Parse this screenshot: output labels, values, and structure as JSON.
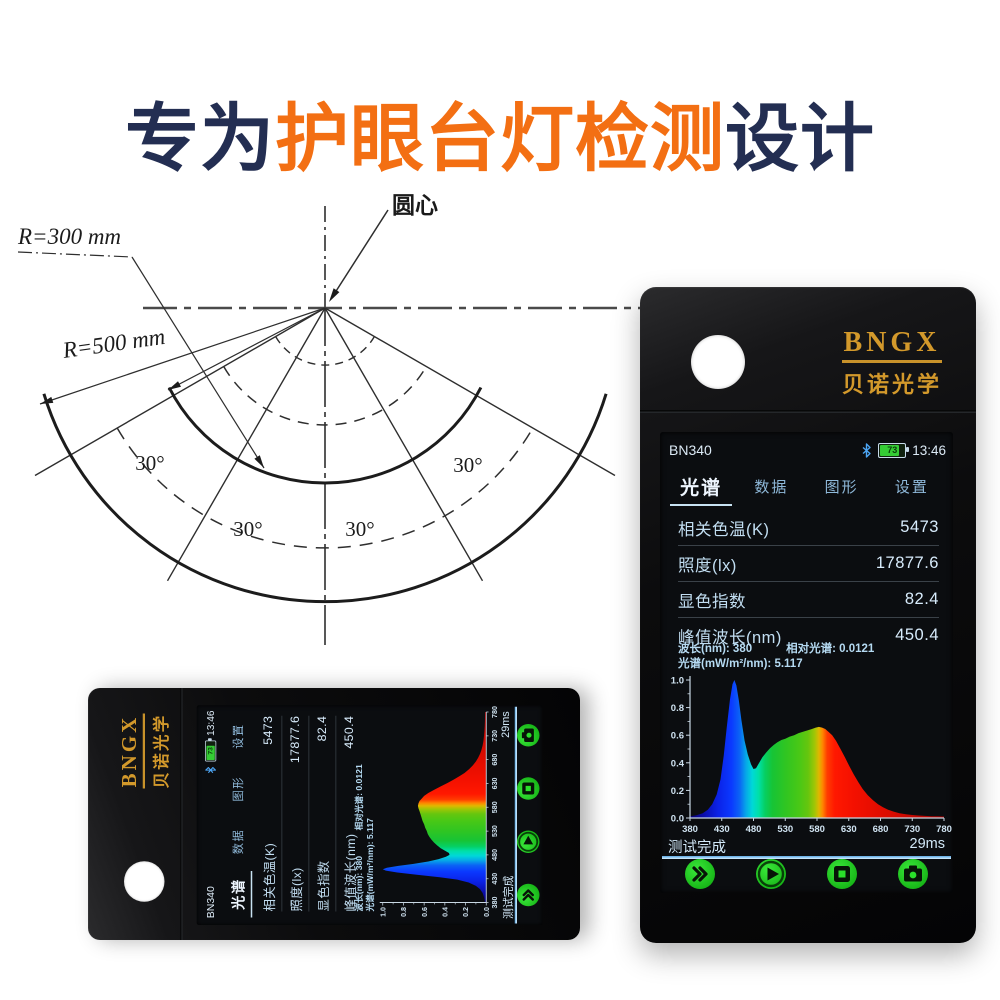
{
  "title": {
    "part1": "专为",
    "part2": "护眼台灯检测",
    "part3": "设计",
    "navy_color": "#232e52",
    "orange_color": "#f36f13"
  },
  "diagram": {
    "center_label": "圆心",
    "r300_label": "R=300 mm",
    "r500_label": "R=500 mm",
    "angle_labels": [
      "30°",
      "30°",
      "30°",
      "30°"
    ]
  },
  "device": {
    "brand": "BNGX",
    "brand_cn": "贝诺光学",
    "brand_color": "#d3992b",
    "status": {
      "model": "BN340",
      "battery": "73",
      "time": "13:46"
    },
    "tabs": [
      {
        "label": "光谱",
        "active": true
      },
      {
        "label": "数据",
        "active": false
      },
      {
        "label": "图形",
        "active": false
      },
      {
        "label": "设置",
        "active": false
      }
    ],
    "readings": [
      {
        "label": "相关色温(K)",
        "value": "5473"
      },
      {
        "label": "照度(lx)",
        "value": "17877.6"
      },
      {
        "label": "显色指数",
        "value": "82.4"
      },
      {
        "label": "峰值波长(nm)",
        "value": "450.4"
      }
    ],
    "cursor_info": {
      "line1_left": "波长(nm): 380",
      "line1_right": "相对光谱: 0.0121",
      "line2": "光谱(mW/m²/nm): 5.117"
    },
    "status_bar": {
      "left": "测试完成",
      "right": "29ms"
    },
    "buttons": [
      "fast-forward",
      "play",
      "stop",
      "camera"
    ],
    "accent_green": "#1ec91e",
    "accent_blue": "#4da6f5"
  },
  "chart_data": {
    "type": "area",
    "title": "",
    "xlabel": "",
    "ylabel": "",
    "xlim": [
      380,
      780
    ],
    "ylim": [
      0,
      1
    ],
    "x_ticks": [
      380,
      430,
      480,
      530,
      580,
      630,
      680,
      730,
      780
    ],
    "y_ticks": [
      0.0,
      0.2,
      0.4,
      0.6,
      0.8,
      1.0
    ],
    "x": [
      380,
      390,
      400,
      408,
      415,
      422,
      428,
      433,
      438,
      443,
      447,
      450,
      453,
      457,
      461,
      466,
      471,
      476,
      480,
      484,
      489,
      494,
      500,
      506,
      512,
      518,
      524,
      530,
      537,
      544,
      551,
      558,
      565,
      572,
      578,
      583,
      588,
      593,
      598,
      604,
      610,
      617,
      624,
      631,
      638,
      645,
      652,
      660,
      668,
      676,
      684,
      692,
      700,
      710,
      720,
      730,
      740,
      750,
      760,
      770,
      780
    ],
    "y": [
      0.012,
      0.02,
      0.035,
      0.06,
      0.1,
      0.17,
      0.28,
      0.45,
      0.66,
      0.86,
      0.97,
      1.0,
      0.96,
      0.85,
      0.71,
      0.56,
      0.46,
      0.39,
      0.355,
      0.36,
      0.4,
      0.44,
      0.475,
      0.505,
      0.53,
      0.55,
      0.565,
      0.575,
      0.59,
      0.6,
      0.615,
      0.625,
      0.635,
      0.645,
      0.655,
      0.66,
      0.655,
      0.645,
      0.625,
      0.6,
      0.56,
      0.5,
      0.44,
      0.375,
      0.315,
      0.26,
      0.21,
      0.165,
      0.13,
      0.1,
      0.078,
      0.06,
      0.047,
      0.035,
      0.027,
      0.022,
      0.018,
      0.015,
      0.013,
      0.012,
      0.011
    ],
    "gradient": [
      [
        380,
        "#07006e"
      ],
      [
        400,
        "#0a0ca8"
      ],
      [
        425,
        "#0b23e8"
      ],
      [
        445,
        "#0b39ff"
      ],
      [
        458,
        "#0b63f5"
      ],
      [
        468,
        "#06a6e8"
      ],
      [
        478,
        "#00d8d8"
      ],
      [
        488,
        "#00e0a8"
      ],
      [
        498,
        "#06cf62"
      ],
      [
        510,
        "#17c435"
      ],
      [
        530,
        "#2fc522"
      ],
      [
        552,
        "#49c816"
      ],
      [
        566,
        "#66c60e"
      ],
      [
        576,
        "#9ec606"
      ],
      [
        583,
        "#dfb800"
      ],
      [
        589,
        "#ff8400"
      ],
      [
        596,
        "#ff3c00"
      ],
      [
        608,
        "#ff1800"
      ],
      [
        640,
        "#f31000"
      ],
      [
        700,
        "#d80b00"
      ],
      [
        780,
        "#a50000"
      ]
    ]
  }
}
